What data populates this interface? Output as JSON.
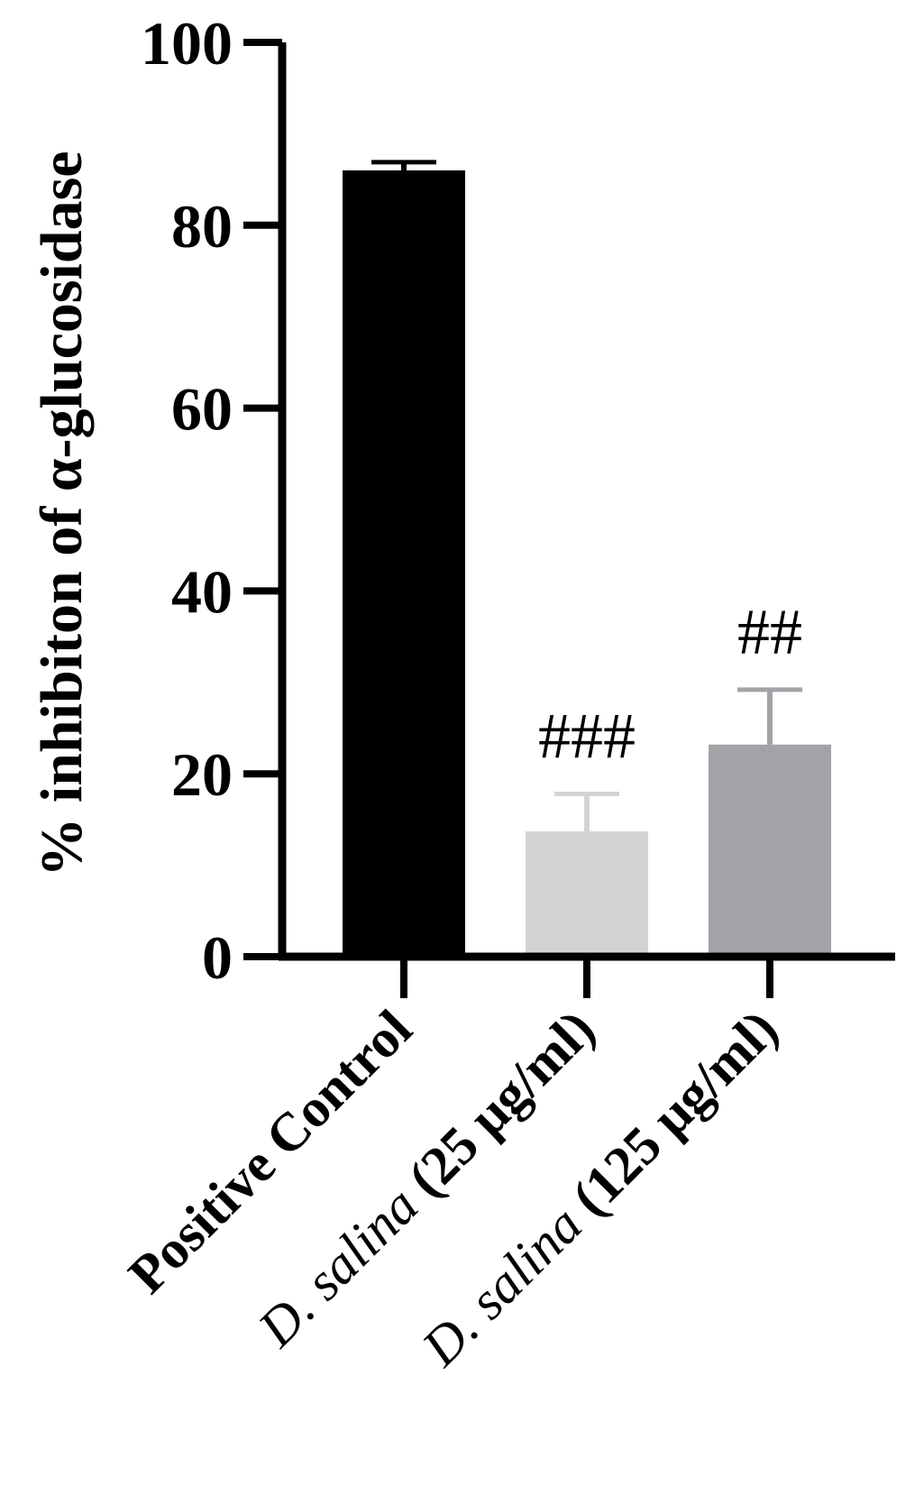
{
  "chart_data": {
    "type": "bar",
    "ylabel": "% inhibiton of α-glucosidase",
    "ylim": [
      0,
      100
    ],
    "yticks": [
      "0",
      "20",
      "40",
      "60",
      "80",
      "100"
    ],
    "grid": false,
    "legend": "none",
    "categories": [
      {
        "species": "",
        "rest": "Positive Control"
      },
      {
        "species": "D. salina",
        "rest": " (25 μg/ml)"
      },
      {
        "species": "D. salina",
        "rest": " (125 μg/ml)"
      }
    ],
    "values": [
      86,
      13.7,
      23.2
    ],
    "errors": [
      0.9,
      4.1,
      6.0
    ],
    "annotations": [
      "",
      "###",
      "##"
    ],
    "colors": [
      "#000000",
      "#d3d3d3",
      "#a3a3a7"
    ]
  }
}
